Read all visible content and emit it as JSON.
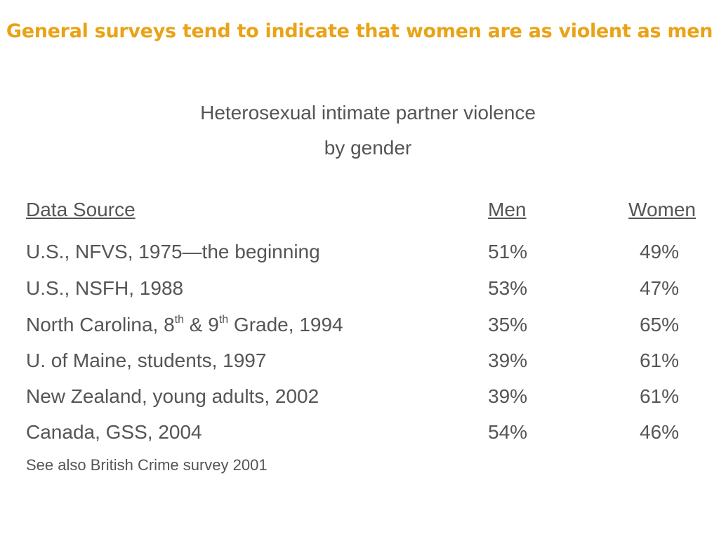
{
  "title": "General surveys tend to indicate that women are as violent as men",
  "subtitle": {
    "line1": "Heterosexual intimate partner violence",
    "line2": "by gender"
  },
  "colors": {
    "title": "#E8A317",
    "text": "#555555"
  },
  "table": {
    "headers": {
      "source": "Data Source",
      "men": "Men",
      "women": "Women"
    },
    "rows": [
      {
        "source": "U.S., NFVS, 1975—the beginning",
        "men": "51%",
        "women": "49%"
      },
      {
        "source": "U.S., NSFH, 1988",
        "men": "53%",
        "women": "47%"
      },
      {
        "source_parts": [
          "North Carolina, 8",
          "th",
          " & 9",
          "th",
          " Grade, 1994"
        ],
        "men": "35%",
        "women": "65%"
      },
      {
        "source": "U. of Maine, students, 1997",
        "men": "39%",
        "women": "61%"
      },
      {
        "source": "New Zealand, young adults, 2002",
        "men": "39%",
        "women": "61%"
      },
      {
        "source": "Canada, GSS, 2004",
        "men": "54%",
        "women": "46%"
      }
    ]
  },
  "note": "See also British Crime survey 2001"
}
